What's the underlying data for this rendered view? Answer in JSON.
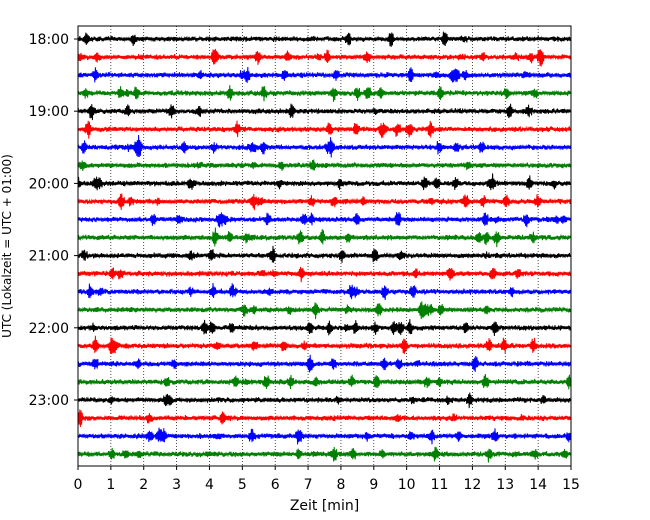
{
  "chart_data": {
    "type": "line",
    "title": "",
    "xlabel": "Zeit  [min]",
    "ylabel": "UTC (Lokalzeit = UTC + 01:00)",
    "xlim": [
      0,
      15
    ],
    "x_ticks": [
      "0",
      "1",
      "2",
      "3",
      "4",
      "5",
      "6",
      "7",
      "8",
      "9",
      "10",
      "11",
      "12",
      "13",
      "14",
      "15"
    ],
    "y_tick_labels": [
      "18:00",
      "19:00",
      "20:00",
      "21:00",
      "22:00",
      "23:00"
    ],
    "grid": "vertical dotted at each minute",
    "trace_minutes_per_line": 15,
    "start_time": "18:00",
    "trace_colors": [
      "#000000",
      "#ff0000",
      "#0000ff",
      "#008000"
    ],
    "traces": [
      {
        "start": "18:00",
        "color": "#000000"
      },
      {
        "start": "18:15",
        "color": "#ff0000"
      },
      {
        "start": "18:30",
        "color": "#0000ff"
      },
      {
        "start": "18:45",
        "color": "#008000"
      },
      {
        "start": "19:00",
        "color": "#000000"
      },
      {
        "start": "19:15",
        "color": "#ff0000"
      },
      {
        "start": "19:30",
        "color": "#0000ff"
      },
      {
        "start": "19:45",
        "color": "#008000"
      },
      {
        "start": "20:00",
        "color": "#000000"
      },
      {
        "start": "20:15",
        "color": "#ff0000"
      },
      {
        "start": "20:30",
        "color": "#0000ff"
      },
      {
        "start": "20:45",
        "color": "#008000"
      },
      {
        "start": "21:00",
        "color": "#000000"
      },
      {
        "start": "21:15",
        "color": "#ff0000"
      },
      {
        "start": "21:30",
        "color": "#0000ff"
      },
      {
        "start": "21:45",
        "color": "#008000"
      },
      {
        "start": "22:00",
        "color": "#000000"
      },
      {
        "start": "22:15",
        "color": "#ff0000"
      },
      {
        "start": "22:30",
        "color": "#0000ff"
      },
      {
        "start": "22:45",
        "color": "#008000"
      },
      {
        "start": "23:00",
        "color": "#000000"
      },
      {
        "start": "23:15",
        "color": "#ff0000"
      },
      {
        "start": "23:30",
        "color": "#0000ff"
      },
      {
        "start": "23:45",
        "color": "#008000"
      }
    ]
  }
}
